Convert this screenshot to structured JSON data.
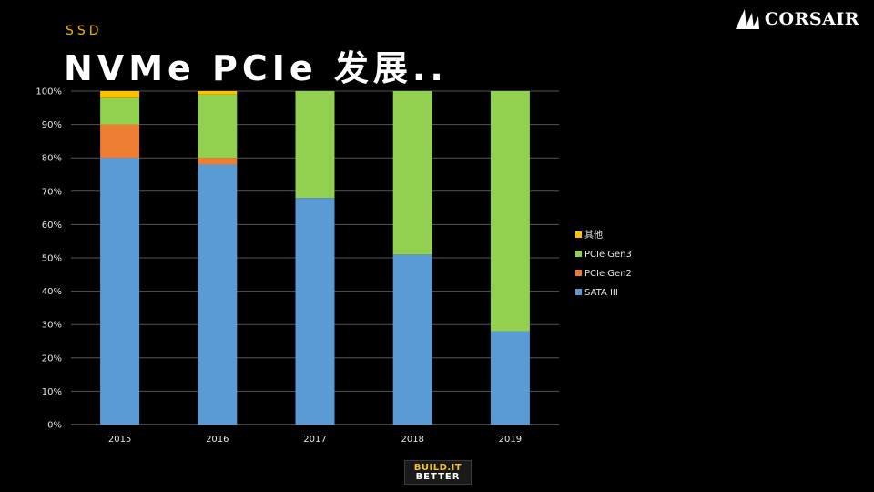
{
  "header": {
    "subtitle": "SSD",
    "title": "NVMe PCIe 发展.."
  },
  "brand": {
    "logo_text": "CORSAIR"
  },
  "footer": {
    "badge_line1": "BUILD.IT",
    "badge_line2": "BETTER"
  },
  "chart_data": {
    "type": "bar",
    "stacked": true,
    "percent": true,
    "categories": [
      "2015",
      "2016",
      "2017",
      "2018",
      "2019"
    ],
    "series": [
      {
        "name": "SATA III",
        "color": "#5b9bd5",
        "values": [
          80,
          78,
          68,
          51,
          28
        ]
      },
      {
        "name": "PCIe Gen2",
        "color": "#ed7d31",
        "values": [
          10,
          2,
          0,
          0,
          0
        ]
      },
      {
        "name": "PCIe Gen3",
        "color": "#92d050",
        "values": [
          8,
          19,
          32,
          49,
          72
        ]
      },
      {
        "name": "其他",
        "color": "#ffc000",
        "values": [
          2,
          1,
          0,
          0,
          0
        ]
      }
    ],
    "yticks": [
      "0%",
      "10%",
      "20%",
      "30%",
      "40%",
      "50%",
      "60%",
      "70%",
      "80%",
      "90%",
      "100%"
    ],
    "ylim": [
      0,
      100
    ],
    "grid": true,
    "legend_position": "right"
  }
}
